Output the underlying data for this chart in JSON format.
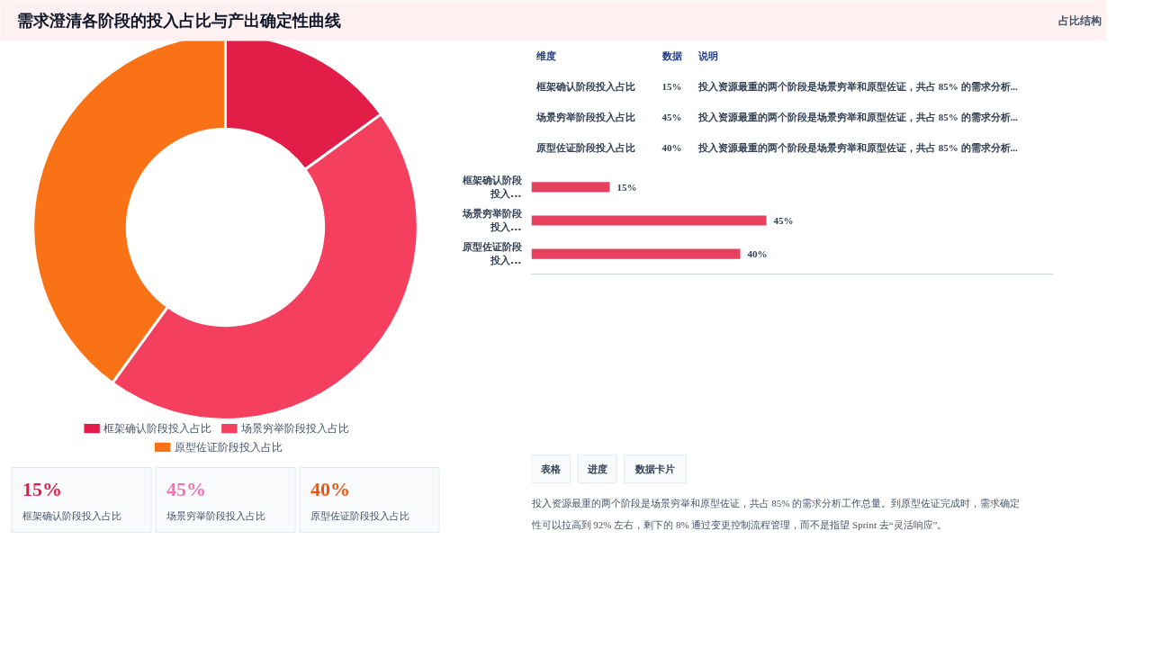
{
  "chart_data": [
    {
      "type": "other",
      "title": "需求澄清各阶段的投入占比与产出确定性曲线",
      "annotations": [
        "占比结构"
      ]
    },
    {
      "type": "donut",
      "categories": [
        "框架确认阶段投入占比",
        "场景穷举阶段投入占比",
        "原型佐证阶段投入占比"
      ],
      "values": [
        15,
        45,
        40
      ],
      "colors": [
        "#e11d48",
        "#f43f5e",
        "#f97316"
      ],
      "legend": "bottom"
    },
    {
      "type": "other",
      "annotations": [
        "维度",
        "数据",
        "说明",
        "框架确认阶段投入占比",
        "15%",
        "投入资源最重的两个阶段是场景穷举和原型佐证，共占 85% 的需求分析...",
        "场景穷举阶段投入占比",
        "45%",
        "投入资源最重的两个阶段是场景穷举和原型佐证，共占 85% 的需求分析...",
        "原型佐证阶段投入占比",
        "40%",
        "投入资源最重的两个阶段是场景穷举和原型佐证，共占 85% 的需求分析..."
      ]
    },
    {
      "type": "bar",
      "orientation": "horizontal",
      "categories": [
        "框架确认阶段投入...",
        "场景穷举阶段投入...",
        "原型佐证阶段投入..."
      ],
      "values": [
        15,
        45,
        40
      ],
      "color": "#e8405f",
      "xlim": [
        0,
        100
      ],
      "tick_labels": "y",
      "value_labels": [
        "15%",
        "45%",
        "40%"
      ]
    },
    {
      "type": "other",
      "colors": [
        "#e11d48",
        "#f472b6",
        "#ea580c"
      ],
      "annotations": [
        "15%",
        "框架确认阶段投入占比",
        "45%",
        "场景穷举阶段投入占比",
        "40%",
        "原型佐证阶段投入占比"
      ]
    },
    {
      "type": "other",
      "annotations": [
        "表格",
        "进度",
        "数据卡片",
        "投入资源最重的两个阶段是场景穷举和原型佐证，共占 85% 的需求分析工作总量。到原型佐证完成时，需求确定性可以拉高到 92% 左右，剩下的 8% 通过变更控制流程管理，而不是指望 Sprint 去“灵活响应”。"
      ]
    }
  ]
}
